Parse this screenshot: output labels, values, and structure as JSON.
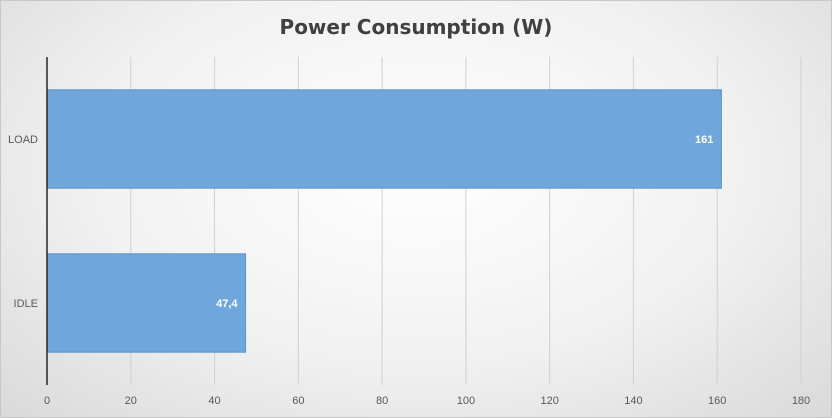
{
  "chart_data": {
    "type": "bar",
    "orientation": "horizontal",
    "title": "Power Consumption (W)",
    "xlabel": "",
    "ylabel": "",
    "categories": [
      "LOAD",
      "IDLE"
    ],
    "values": [
      161,
      47.4
    ],
    "value_labels": [
      "161",
      "47,4"
    ],
    "xlim": [
      0,
      180
    ],
    "x_ticks": [
      0,
      20,
      40,
      60,
      80,
      100,
      120,
      140,
      160,
      180
    ],
    "grid": true,
    "legend": "none",
    "bar_color": "#6fa6dc",
    "bar_edge_color": "#5b93cc"
  }
}
